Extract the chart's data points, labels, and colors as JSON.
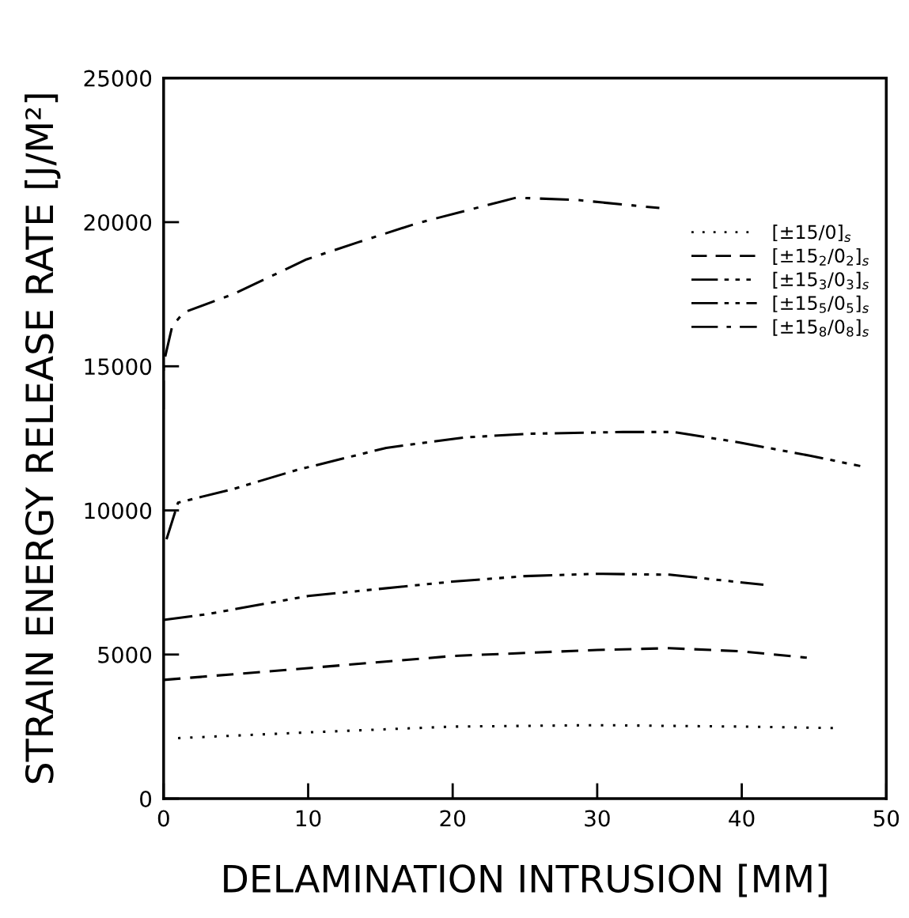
{
  "chart_data": {
    "type": "line",
    "xlabel": "DELAMINATION INTRUSION [MM]",
    "ylabel": "STRAIN ENERGY RELEASE RATE [J/M²]",
    "xlim": [
      0,
      50
    ],
    "xticks": [
      0,
      10,
      20,
      30,
      40,
      50
    ],
    "ylim": [
      0,
      25000
    ],
    "yticks": [
      0,
      5000,
      10000,
      15000,
      20000,
      25000
    ],
    "grid": false,
    "legend": "top right",
    "marker": "none",
    "series": [
      {
        "name": "[±15/0]$_{s}$",
        "color": "#000000",
        "line_style": "dotted",
        "x": [
          1,
          10,
          20,
          30,
          40,
          46.5
        ],
        "values": [
          2100,
          2300,
          2500,
          2550,
          2500,
          2450
        ]
      },
      {
        "name": "[±15$_{2}$/0$_{2}$]$_{s}$",
        "color": "#000000",
        "line_style": "dashed",
        "x": [
          0,
          10,
          20,
          30,
          35,
          40,
          44.5
        ],
        "values": [
          4120,
          4530,
          4950,
          5160,
          5220,
          5110,
          4890
        ]
      },
      {
        "name": "[±15$_{3}$/0$_{3}$]$_{s}$",
        "color": "#000000",
        "line_style": "longdashdotdotdot",
        "x": [
          0,
          3,
          10,
          20,
          25,
          30,
          35,
          41.5
        ],
        "values": [
          6200,
          6400,
          7030,
          7530,
          7720,
          7800,
          7770,
          7420
        ]
      },
      {
        "name": "[±15$_{5}$/0$_{5}$]$_{s}$",
        "color": "#000000",
        "line_style": "dashdotdot",
        "x": [
          0.2,
          1,
          4.8,
          9.2,
          15.4,
          20.8,
          25.3,
          31.8,
          35.3,
          39.8,
          44.7,
          48.2
        ],
        "values": [
          9000,
          10270,
          10740,
          11400,
          12170,
          12530,
          12660,
          12720,
          12720,
          12360,
          11900,
          11540
        ]
      },
      {
        "name": "[±15$_{8}$/0$_{8}$]$_{s}$",
        "color": "#000000",
        "line_style": "dashdot",
        "x": [
          0,
          0,
          0.6,
          1.4,
          4.8,
          9.9,
          13.5,
          17.6,
          24.4,
          28.6,
          34.3
        ],
        "values": [
          13500,
          15100,
          16400,
          16870,
          17500,
          18710,
          19310,
          19970,
          20850,
          20770,
          20490
        ]
      }
    ]
  }
}
